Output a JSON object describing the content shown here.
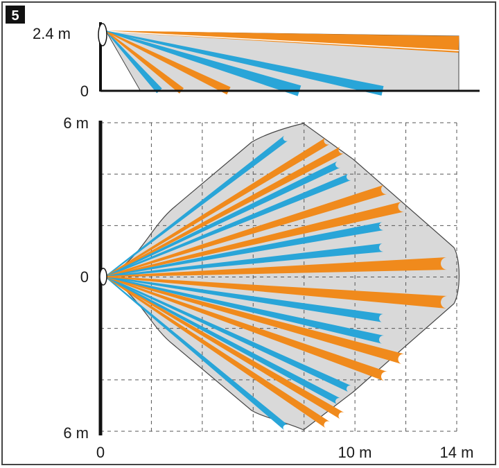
{
  "figure_number": "5",
  "side_view": {
    "height_label": "2.4 m",
    "floor_label": "0",
    "mount_height_m": 2.4
  },
  "top_view": {
    "y_top_label": "6 m",
    "y_zero_label": "0",
    "y_bottom_label": "6 m",
    "x_zero_label": "0",
    "x_mid_label": "10 m",
    "x_far_label": "14 m",
    "range_m": 14,
    "half_width_m": 6
  },
  "colors": {
    "orange": "#f08a1c",
    "blue": "#29a5d8",
    "zone_fill": "#d9d9d9",
    "frame": "#444444",
    "ink": "#1a1a1a"
  }
}
